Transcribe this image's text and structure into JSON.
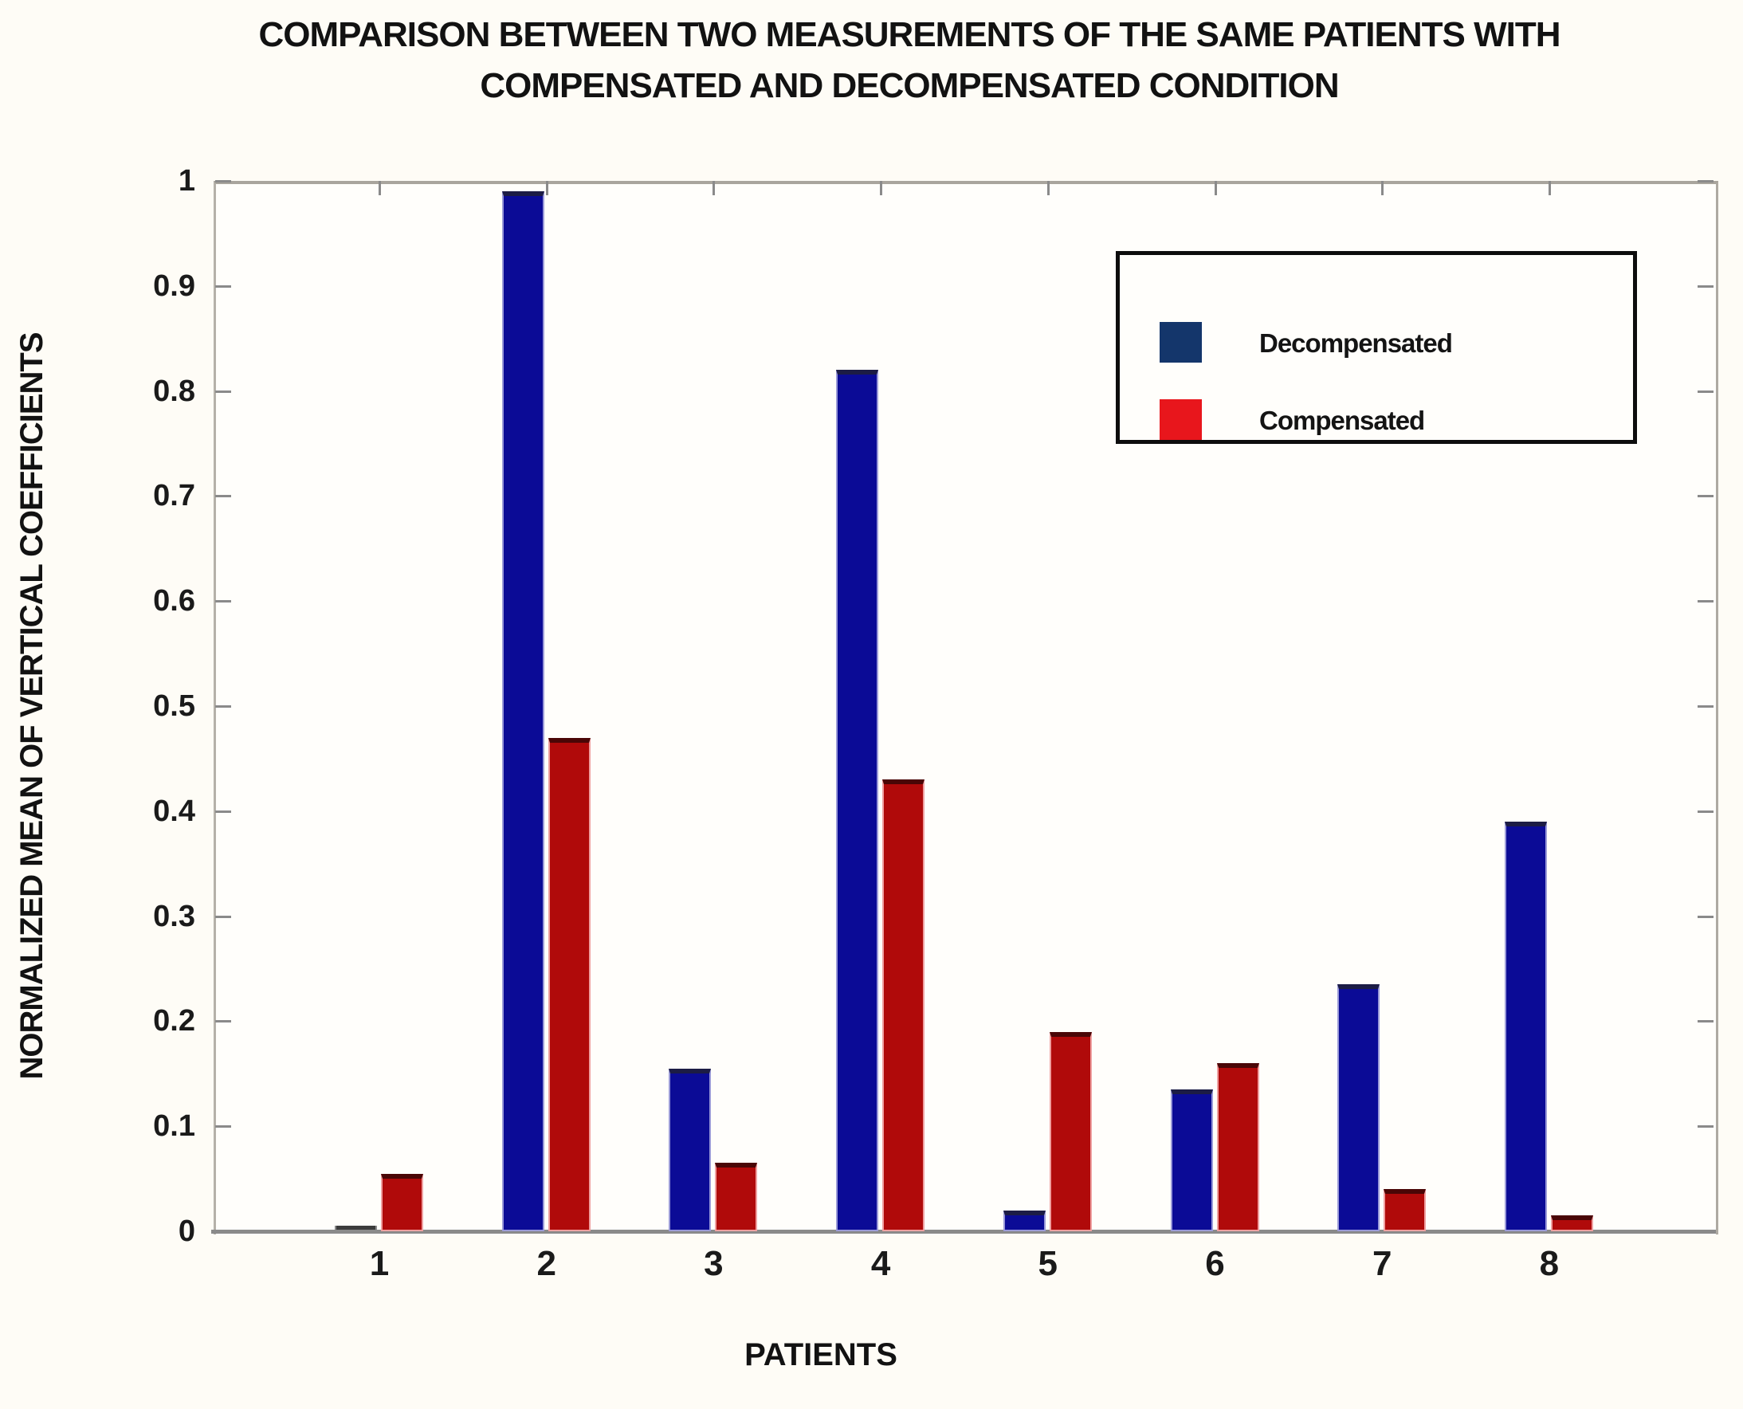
{
  "title": {
    "line1": "COMPARISON BETWEEN TWO MEASUREMENTS OF THE SAME PATIENTS WITH",
    "line2": "COMPENSATED AND DECOMPENSATED CONDITION"
  },
  "y_axis": {
    "title": "NORMALIZED MEAN OF VERTICAL COEFFICIENTS",
    "tick_labels": [
      "0",
      "0.1",
      "0.2",
      "0.3",
      "0.4",
      "0.5",
      "0.6",
      "0.7",
      "0.8",
      "0.9",
      "1"
    ]
  },
  "x_axis": {
    "title": "PATIENTS",
    "categories": [
      "1",
      "2",
      "3",
      "4",
      "5",
      "6",
      "7",
      "8"
    ]
  },
  "legend": {
    "items": [
      {
        "label": "Decompensated",
        "color": "#14366b"
      },
      {
        "label": "Compensated",
        "color": "#e8161c"
      }
    ]
  },
  "colors": {
    "decompensated_bar": "#0b0b96",
    "compensated_bar": "#b00a0a",
    "axis_line": "#8a8a8a",
    "plot_border": "#a9a59d",
    "background": "#fefcf6"
  },
  "chart_data": {
    "type": "bar",
    "title": "COMPARISON BETWEEN TWO MEASUREMENTS OF THE SAME PATIENTS WITH COMPENSATED AND DECOMPENSATED CONDITION",
    "categories": [
      "1",
      "2",
      "3",
      "4",
      "5",
      "6",
      "7",
      "8"
    ],
    "series": [
      {
        "name": "Decompensated",
        "color": "#0b0b96",
        "values": [
          0.005,
          0.99,
          0.155,
          0.82,
          0.02,
          0.135,
          0.235,
          0.39
        ]
      },
      {
        "name": "Compensated",
        "color": "#b00a0a",
        "values": [
          0.055,
          0.47,
          0.065,
          0.43,
          0.19,
          0.16,
          0.04,
          0.015
        ]
      }
    ],
    "xlabel": "PATIENTS",
    "ylabel": "NORMALIZED MEAN OF VERTICAL COEFFICIENTS",
    "ylim": [
      0,
      1
    ],
    "ytick_step": 0.1,
    "grid": false,
    "legend_position": "upper right"
  }
}
